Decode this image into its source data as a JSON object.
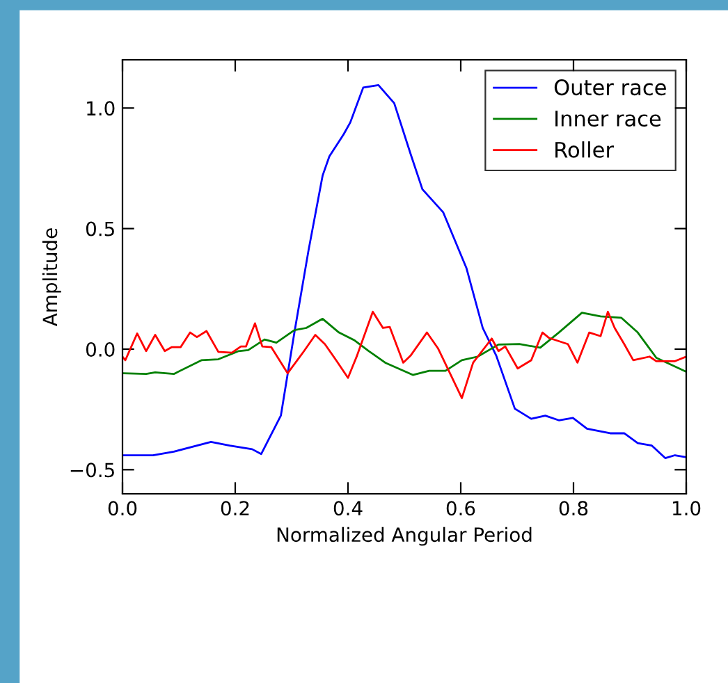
{
  "chart_data": {
    "type": "line",
    "xlabel": "Normalized Angular Period",
    "ylabel": "Amplitude",
    "xlim": [
      0.0,
      1.0
    ],
    "ylim": [
      -0.6,
      1.2
    ],
    "xticks": [
      {
        "value": 0.0,
        "label": "0.0"
      },
      {
        "value": 0.2,
        "label": "0.2"
      },
      {
        "value": 0.4,
        "label": "0.4"
      },
      {
        "value": 0.6,
        "label": "0.6"
      },
      {
        "value": 0.8,
        "label": "0.8"
      },
      {
        "value": 1.0,
        "label": "1.0"
      }
    ],
    "yticks": [
      {
        "value": -0.5,
        "label": "−0.5"
      },
      {
        "value": 0.0,
        "label": "0.0"
      },
      {
        "value": 0.5,
        "label": "0.5"
      },
      {
        "value": 1.0,
        "label": "1.0"
      }
    ],
    "legend": "top right",
    "grid": false,
    "marker": "none",
    "line_style": "solid",
    "series": [
      {
        "name": "Outer race",
        "color": "#0000ff",
        "x": [
          0,
          0.054,
          0.091,
          0.157,
          0.19,
          0.23,
          0.246,
          0.281,
          0.305,
          0.33,
          0.355,
          0.367,
          0.392,
          0.404,
          0.427,
          0.454,
          0.482,
          0.511,
          0.532,
          0.569,
          0.61,
          0.639,
          0.663,
          0.696,
          0.725,
          0.75,
          0.774,
          0.799,
          0.824,
          0.865,
          0.89,
          0.914,
          0.939,
          0.963,
          0.98,
          1.0
        ],
        "values": [
          -0.44,
          -0.44,
          -0.425,
          -0.385,
          -0.4,
          -0.415,
          -0.435,
          -0.275,
          0.07,
          0.41,
          0.72,
          0.8,
          0.89,
          0.94,
          1.085,
          1.095,
          1.02,
          0.81,
          0.663,
          0.567,
          0.337,
          0.088,
          -0.027,
          -0.247,
          -0.289,
          -0.276,
          -0.295,
          -0.285,
          -0.33,
          -0.349,
          -0.349,
          -0.39,
          -0.4,
          -0.452,
          -0.44,
          -0.448
        ]
      },
      {
        "name": "Inner race",
        "color": "#008000",
        "x": [
          0,
          0.042,
          0.058,
          0.091,
          0.14,
          0.17,
          0.206,
          0.223,
          0.252,
          0.273,
          0.305,
          0.326,
          0.355,
          0.384,
          0.412,
          0.437,
          0.466,
          0.515,
          0.544,
          0.573,
          0.602,
          0.63,
          0.667,
          0.704,
          0.741,
          0.774,
          0.815,
          0.848,
          0.885,
          0.914,
          0.947,
          1.0
        ],
        "values": [
          -0.1,
          -0.103,
          -0.096,
          -0.103,
          -0.046,
          -0.042,
          -0.008,
          -0.004,
          0.04,
          0.027,
          0.079,
          0.088,
          0.126,
          0.069,
          0.036,
          -0.008,
          -0.056,
          -0.107,
          -0.09,
          -0.09,
          -0.046,
          -0.031,
          0.019,
          0.021,
          0.006,
          0.069,
          0.151,
          0.136,
          0.13,
          0.069,
          -0.036,
          -0.094
        ]
      },
      {
        "name": "Roller",
        "color": "#ff0000",
        "x": [
          0,
          0.005,
          0.026,
          0.042,
          0.058,
          0.075,
          0.087,
          0.103,
          0.12,
          0.132,
          0.149,
          0.17,
          0.194,
          0.21,
          0.219,
          0.235,
          0.248,
          0.264,
          0.293,
          0.322,
          0.342,
          0.359,
          0.379,
          0.4,
          0.416,
          0.444,
          0.462,
          0.474,
          0.498,
          0.511,
          0.54,
          0.56,
          0.602,
          0.622,
          0.655,
          0.667,
          0.679,
          0.701,
          0.725,
          0.745,
          0.757,
          0.79,
          0.807,
          0.828,
          0.848,
          0.861,
          0.873,
          0.89,
          0.906,
          0.935,
          0.947,
          0.98,
          1.0
        ],
        "values": [
          -0.031,
          -0.046,
          0.065,
          -0.008,
          0.059,
          -0.008,
          0.008,
          0.008,
          0.069,
          0.05,
          0.075,
          -0.011,
          -0.015,
          0.011,
          0.011,
          0.107,
          0.011,
          0.008,
          -0.1,
          -0.008,
          0.059,
          0.021,
          -0.046,
          -0.119,
          -0.027,
          0.155,
          0.088,
          0.092,
          -0.056,
          -0.027,
          0.069,
          0.002,
          -0.203,
          -0.056,
          0.044,
          -0.008,
          0.011,
          -0.08,
          -0.046,
          0.069,
          0.046,
          0.021,
          -0.056,
          0.069,
          0.054,
          0.155,
          0.088,
          0.021,
          -0.046,
          -0.031,
          -0.05,
          -0.05,
          -0.031
        ]
      }
    ]
  }
}
